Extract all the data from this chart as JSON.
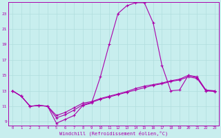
{
  "xlabel": "Windchill (Refroidissement éolien,°C)",
  "xlim": [
    -0.5,
    23.5
  ],
  "ylim": [
    8.5,
    24.5
  ],
  "xticks": [
    0,
    1,
    2,
    3,
    4,
    5,
    6,
    7,
    8,
    9,
    10,
    11,
    12,
    13,
    14,
    15,
    16,
    17,
    18,
    19,
    20,
    21,
    22,
    23
  ],
  "yticks": [
    9,
    11,
    13,
    15,
    17,
    19,
    21,
    23
  ],
  "background_color": "#c8eeee",
  "line_color": "#aa00aa",
  "grid_color": "#b0dddd",
  "line1_x": [
    0,
    1,
    2,
    3,
    4,
    5,
    6,
    7,
    8,
    9,
    10,
    11,
    12,
    13,
    14,
    15,
    16,
    17,
    18,
    19,
    20,
    21,
    22,
    23
  ],
  "line1_y": [
    13.0,
    12.3,
    11.0,
    11.1,
    11.0,
    8.8,
    9.3,
    9.8,
    11.1,
    11.4,
    14.8,
    19.0,
    23.0,
    24.0,
    24.4,
    24.4,
    21.8,
    16.3,
    13.0,
    13.1,
    15.0,
    14.7,
    13.0,
    13.0
  ],
  "line2_x": [
    0,
    1,
    2,
    3,
    4,
    5,
    6,
    7,
    8,
    9,
    10,
    11,
    12,
    13,
    14,
    15,
    16,
    17,
    18,
    19,
    20,
    21,
    22,
    23
  ],
  "line2_y": [
    13.0,
    12.3,
    11.0,
    11.1,
    11.0,
    9.8,
    10.2,
    10.8,
    11.4,
    11.6,
    12.0,
    12.3,
    12.6,
    12.9,
    13.3,
    13.6,
    13.8,
    14.0,
    14.3,
    14.5,
    15.0,
    14.8,
    13.1,
    13.0
  ],
  "line3_x": [
    0,
    1,
    2,
    3,
    4,
    5,
    6,
    7,
    8,
    9,
    10,
    11,
    12,
    13,
    14,
    15,
    16,
    17,
    18,
    19,
    20,
    21,
    22,
    23
  ],
  "line3_y": [
    13.0,
    12.3,
    11.0,
    11.1,
    11.0,
    9.5,
    9.9,
    10.5,
    11.2,
    11.5,
    11.9,
    12.2,
    12.5,
    12.8,
    13.1,
    13.4,
    13.7,
    13.9,
    14.2,
    14.4,
    14.8,
    14.6,
    13.0,
    12.9
  ]
}
